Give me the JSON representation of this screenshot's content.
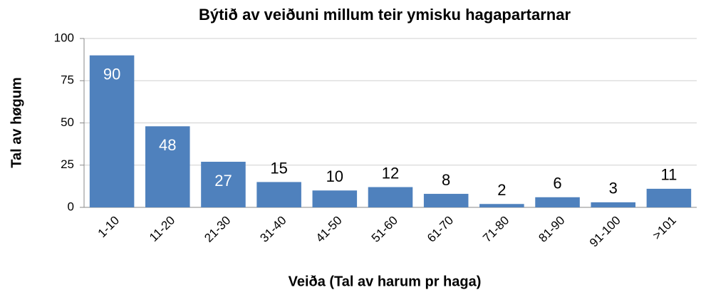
{
  "chart_data": {
    "type": "bar",
    "title": "Býtið av veiðuni millum teir ymisku hagapartarnar",
    "x_label": "Veiða (Tal av harum pr haga)",
    "y_label": "Tal av høgum",
    "categories": [
      "1-10",
      "11-20",
      "21-30",
      "31-40",
      "41-50",
      "51-60",
      "61-70",
      "71-80",
      "81-90",
      "91-100",
      ">101"
    ],
    "values": [
      90,
      48,
      27,
      15,
      10,
      12,
      8,
      2,
      6,
      3,
      11
    ],
    "color": "#4f81bd",
    "ylim": [
      0,
      100
    ],
    "yticks": [
      0,
      25,
      50,
      75,
      100
    ],
    "grid": true
  }
}
